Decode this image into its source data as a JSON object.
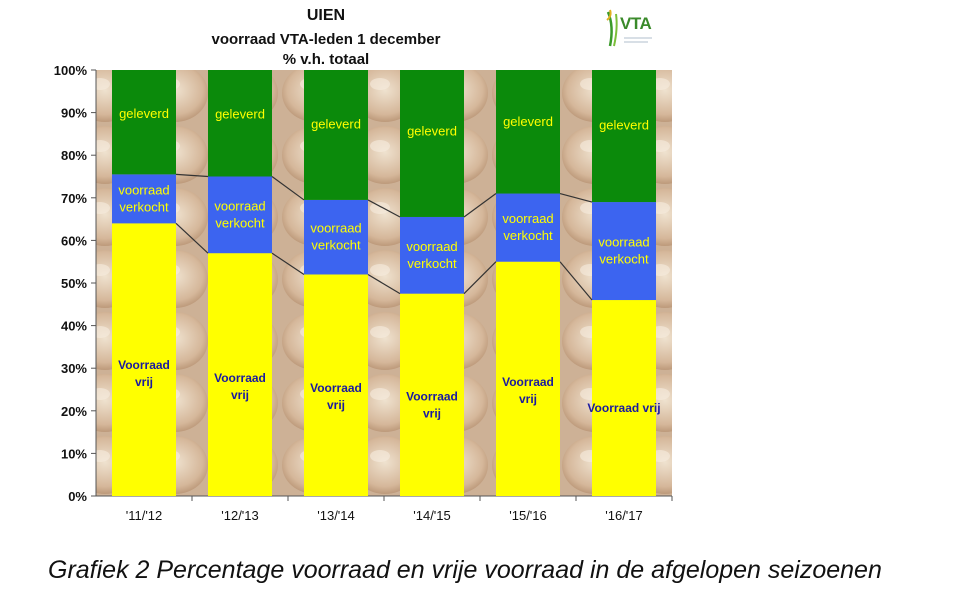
{
  "caption": "Grafiek 2  Percentage voorraad en vrije voorraad in de afgelopen seizoenen",
  "logo": {
    "text": "VTA"
  },
  "colors": {
    "geleverd": "#0b8a0b",
    "verkocht": "#3c64f0",
    "vrij": "#ffff00",
    "segment_label_green": "#ffff00",
    "segment_label_blue": "#ffff00",
    "segment_label_yellow": "#1a1aa0",
    "connector": "#333333",
    "background_tint": "#d8c0a8"
  },
  "chart_data": {
    "type": "bar",
    "stacked": true,
    "title": "UIEN",
    "subtitle": [
      "voorraad VTA-leden 1 december",
      "% v.h. totaal"
    ],
    "categories": [
      "'11/'12",
      "'12/'13",
      "'13/'14",
      "'14/'15",
      "'15/'16",
      "'16/'17"
    ],
    "ylim": [
      0,
      100
    ],
    "yticks": [
      "0%",
      "10%",
      "20%",
      "30%",
      "40%",
      "50%",
      "60%",
      "70%",
      "80%",
      "90%",
      "100%"
    ],
    "grid": false,
    "series": [
      {
        "name": "Voorraad vrij",
        "values": [
          64,
          57,
          52,
          47.5,
          55,
          46
        ],
        "labels": [
          "Voorraad\nvrij",
          "Voorraad\nvrij",
          "Voorraad\nvrij",
          "Voorraad\nvrij",
          "Voorraad\nvrij",
          "Voorraad vrij"
        ]
      },
      {
        "name": "voorraad verkocht",
        "values": [
          11.5,
          18,
          17.5,
          18,
          16,
          23
        ],
        "labels": [
          "voorraad\nverkocht",
          "voorraad\nverkocht",
          "voorraad\nverkocht",
          "voorraad\nverkocht",
          "voorraad\nverkocht",
          "voorraad\nverkocht"
        ]
      },
      {
        "name": "geleverd",
        "values": [
          24.5,
          25,
          30.5,
          34.5,
          29,
          31
        ],
        "labels": [
          "geleverd",
          "geleverd",
          "geleverd",
          "geleverd",
          "geleverd",
          "geleverd"
        ]
      }
    ],
    "connector_lines": true
  }
}
